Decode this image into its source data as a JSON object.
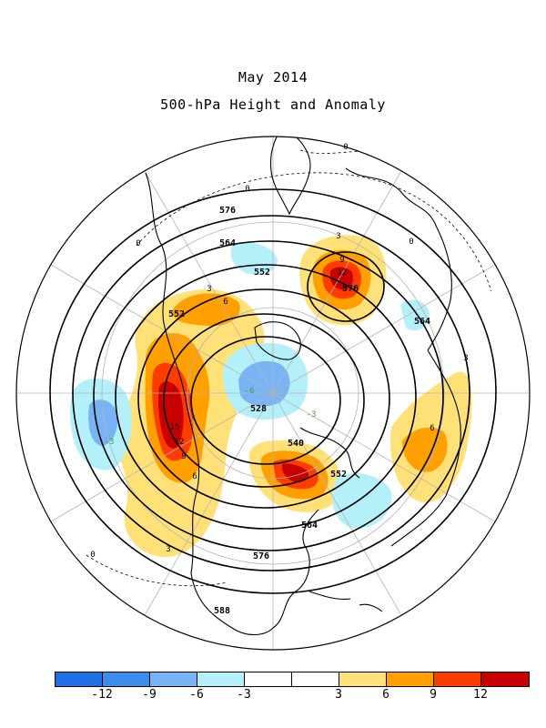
{
  "header": {
    "title": "May 2014",
    "subtitle": "500-hPa Height and Anomaly"
  },
  "colors": {
    "neg12": "#1e6ee6",
    "neg9": "#3c8cf0",
    "neg6": "#78b4f5",
    "neg3": "#b4f0fa",
    "zero": "#ffffff",
    "pos3": "#ffe178",
    "pos6": "#ffa000",
    "pos9": "#ff3c00",
    "pos12": "#c80000"
  },
  "colorbar": {
    "swatches": [
      "#1e6ee6",
      "#3c8cf0",
      "#78b4f5",
      "#b4f0fa",
      "#ffffff",
      "#ffffff",
      "#ffe178",
      "#ffa000",
      "#ff3c00",
      "#c80000"
    ],
    "tick_labels": [
      "-12",
      "-9",
      "-6",
      "-3",
      "3",
      "6",
      "9",
      "12"
    ]
  },
  "height_labels": [
    "576",
    "564",
    "552",
    "552",
    "528",
    "540",
    "552",
    "564",
    "576",
    "576",
    "564",
    "588"
  ],
  "anomaly_labels": [
    "0",
    "0",
    "0",
    "0",
    "0",
    "3",
    "6",
    "9",
    "12",
    "15",
    "12",
    "9",
    "6",
    "3",
    "6",
    "3",
    "3",
    "-3",
    "-3",
    "-6"
  ]
}
